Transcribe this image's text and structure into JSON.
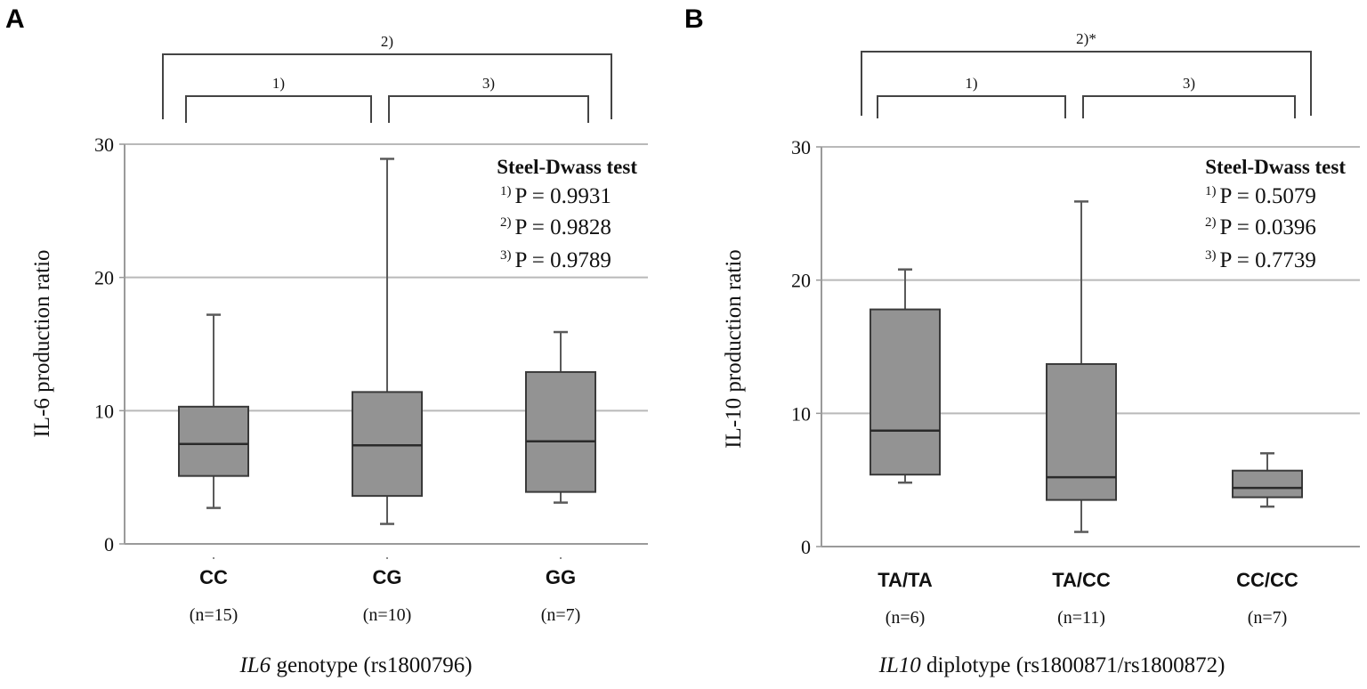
{
  "figure": {
    "panels": [
      "A",
      "B"
    ]
  },
  "chart_data": [
    {
      "type": "boxplot",
      "panel": "A",
      "ylabel": "IL-6 production ratio",
      "xlabel_italic": "IL6",
      "xlabel_rest": " genotype (rs1800796)",
      "ylim": [
        0,
        30
      ],
      "yticks": [
        "0",
        "10",
        "20",
        "30"
      ],
      "grid": true,
      "categories": [
        "CC",
        "CG",
        "GG"
      ],
      "counts": [
        "(n=15)",
        "(n=10)",
        "(n=7)"
      ],
      "boxes": [
        {
          "min": 2.7,
          "q1": 5.1,
          "median": 7.5,
          "q3": 10.3,
          "max": 17.2
        },
        {
          "min": 1.5,
          "q1": 3.6,
          "median": 7.4,
          "q3": 11.4,
          "max": 28.9
        },
        {
          "min": 3.1,
          "q1": 3.9,
          "median": 7.7,
          "q3": 12.9,
          "max": 15.9
        }
      ],
      "brackets": [
        {
          "label": "1)",
          "from": 0,
          "to": 1,
          "level": 1
        },
        {
          "label": "3)",
          "from": 1,
          "to": 2,
          "level": 1
        },
        {
          "label": "2)",
          "from": 0,
          "to": 2,
          "level": 2
        }
      ],
      "stats": {
        "title": "Steel-Dwass test",
        "lines": [
          {
            "sup": "1)",
            "text": "P = 0.9931"
          },
          {
            "sup": "2)",
            "text": "P = 0.9828"
          },
          {
            "sup": "3)",
            "text": "P = 0.9789"
          }
        ]
      }
    },
    {
      "type": "boxplot",
      "panel": "B",
      "ylabel": "IL-10 production ratio",
      "xlabel_italic": "IL10",
      "xlabel_rest": " diplotype (rs1800871/rs1800872)",
      "ylim": [
        0,
        30
      ],
      "yticks": [
        "0",
        "10",
        "20",
        "30"
      ],
      "grid": true,
      "categories": [
        "TA/TA",
        "TA/CC",
        "CC/CC"
      ],
      "counts": [
        "(n=6)",
        "(n=11)",
        "(n=7)"
      ],
      "boxes": [
        {
          "min": 4.8,
          "q1": 5.4,
          "median": 8.7,
          "q3": 17.8,
          "max": 20.8
        },
        {
          "min": 1.1,
          "q1": 3.5,
          "median": 5.2,
          "q3": 13.7,
          "max": 25.9
        },
        {
          "min": 3.0,
          "q1": 3.7,
          "median": 4.4,
          "q3": 5.7,
          "max": 7.0
        }
      ],
      "brackets": [
        {
          "label": "1)",
          "from": 0,
          "to": 1,
          "level": 1
        },
        {
          "label": "3)",
          "from": 1,
          "to": 2,
          "level": 1
        },
        {
          "label": "2)*",
          "from": 0,
          "to": 2,
          "level": 2
        }
      ],
      "stats": {
        "title": "Steel-Dwass test",
        "lines": [
          {
            "sup": "1)",
            "text": "P = 0.5079"
          },
          {
            "sup": "2)",
            "text": "P = 0.0396"
          },
          {
            "sup": "3)",
            "text": "P = 0.7739"
          }
        ]
      }
    }
  ]
}
